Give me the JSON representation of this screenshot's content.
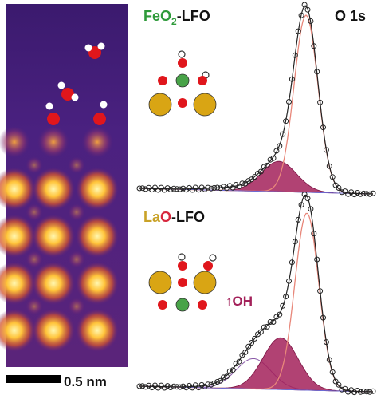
{
  "figure": {
    "scale_bar_label": "0.5 nm",
    "panel_top": {
      "title_part1": "FeO",
      "title_sub": "2",
      "title_part2": "-LFO",
      "spectrum_label": "O 1s",
      "colors": {
        "fe_o2": "#2e9a3a",
        "lfo": "#111111"
      }
    },
    "panel_bottom": {
      "title_part1": "La",
      "title_part2": "O",
      "title_part3": "-LFO",
      "annotation": "↑OH",
      "colors": {
        "la": "#c9a227",
        "o": "#d7263d",
        "lfo": "#111111",
        "oh": "#a3215a"
      }
    },
    "colors": {
      "stem_bg": "#4a1d7a",
      "atom_bright": "#ffe37a",
      "oxygen": "#e0161c",
      "iron": "#48a348",
      "lanthanum": "#d9a514",
      "hydrogen": "#ffffff",
      "fit_fill": "#a3215a",
      "main_peak_line": "#e8877a",
      "data_line": "#222222"
    },
    "icons": [
      "water-molecule-icon",
      "oxygen-atom-icon",
      "iron-atom-icon",
      "lanthanum-atom-icon",
      "hydroxyl-icon"
    ]
  }
}
